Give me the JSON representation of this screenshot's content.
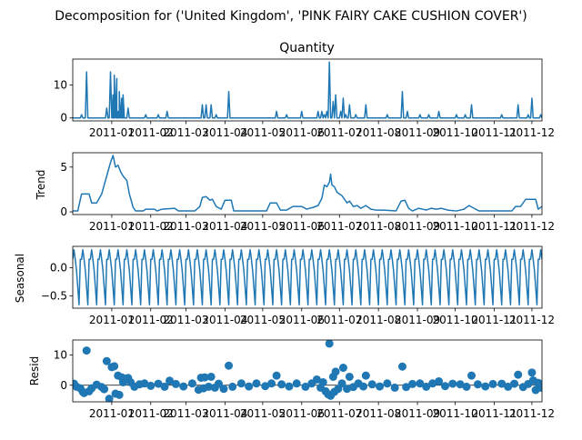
{
  "figure": {
    "suptitle": "Decomposition for ('United Kingdom', 'PINK FAIRY CAKE CUSHION COVER')"
  },
  "colors": {
    "series": "#1f77b4",
    "axis": "#000000",
    "background": "#ffffff"
  },
  "chart_data": [
    {
      "type": "line",
      "title": "Quantity",
      "ylabel": "",
      "ylim": [
        -0.9,
        17.9
      ],
      "yticks": [
        0,
        10
      ],
      "xlim": [
        "2010-12-01",
        "2011-12-09"
      ],
      "x_tick_labels": [
        "2011-01",
        "2011-02",
        "2011-03",
        "2011-04",
        "2011-05",
        "2011-06",
        "2011-07",
        "2011-08",
        "2011-09",
        "2011-10",
        "2011-11",
        "2011-12"
      ],
      "baseline": 0,
      "spikes": [
        {
          "date": "2010-12-08",
          "value": 1
        },
        {
          "date": "2010-12-12",
          "value": 14
        },
        {
          "date": "2010-12-28",
          "value": 3
        },
        {
          "date": "2010-12-31",
          "value": 14
        },
        {
          "date": "2011-01-02",
          "value": 7
        },
        {
          "date": "2011-01-03",
          "value": 13
        },
        {
          "date": "2011-01-05",
          "value": 12
        },
        {
          "date": "2011-01-06",
          "value": 2
        },
        {
          "date": "2011-01-07",
          "value": 8
        },
        {
          "date": "2011-01-09",
          "value": 6
        },
        {
          "date": "2011-01-10",
          "value": 7
        },
        {
          "date": "2011-01-14",
          "value": 3
        },
        {
          "date": "2011-01-28",
          "value": 1
        },
        {
          "date": "2011-02-07",
          "value": 1
        },
        {
          "date": "2011-02-14",
          "value": 2
        },
        {
          "date": "2011-03-14",
          "value": 4
        },
        {
          "date": "2011-03-17",
          "value": 4
        },
        {
          "date": "2011-03-21",
          "value": 4
        },
        {
          "date": "2011-03-25",
          "value": 1
        },
        {
          "date": "2011-04-04",
          "value": 8
        },
        {
          "date": "2011-05-12",
          "value": 2
        },
        {
          "date": "2011-05-20",
          "value": 1
        },
        {
          "date": "2011-06-01",
          "value": 2
        },
        {
          "date": "2011-06-14",
          "value": 2
        },
        {
          "date": "2011-06-17",
          "value": 2
        },
        {
          "date": "2011-06-19",
          "value": 1
        },
        {
          "date": "2011-06-21",
          "value": 2
        },
        {
          "date": "2011-06-23",
          "value": 17
        },
        {
          "date": "2011-06-26",
          "value": 5
        },
        {
          "date": "2011-06-28",
          "value": 7
        },
        {
          "date": "2011-07-02",
          "value": 2
        },
        {
          "date": "2011-07-04",
          "value": 6
        },
        {
          "date": "2011-07-06",
          "value": 1
        },
        {
          "date": "2011-07-09",
          "value": 4
        },
        {
          "date": "2011-07-14",
          "value": 1
        },
        {
          "date": "2011-07-22",
          "value": 4
        },
        {
          "date": "2011-08-08",
          "value": 1
        },
        {
          "date": "2011-08-20",
          "value": 8
        },
        {
          "date": "2011-08-24",
          "value": 2
        },
        {
          "date": "2011-09-03",
          "value": 1
        },
        {
          "date": "2011-09-10",
          "value": 1
        },
        {
          "date": "2011-09-18",
          "value": 2
        },
        {
          "date": "2011-10-02",
          "value": 1
        },
        {
          "date": "2011-10-09",
          "value": 1
        },
        {
          "date": "2011-10-14",
          "value": 4
        },
        {
          "date": "2011-11-07",
          "value": 1
        },
        {
          "date": "2011-11-20",
          "value": 4
        },
        {
          "date": "2011-11-28",
          "value": 1
        },
        {
          "date": "2011-12-01",
          "value": 6
        },
        {
          "date": "2011-12-08",
          "value": 1
        }
      ]
    },
    {
      "type": "line",
      "title": "",
      "ylabel": "Trend",
      "ylim": [
        -0.3,
        6.6
      ],
      "yticks": [
        0,
        5
      ],
      "xlim": [
        "2010-12-01",
        "2011-12-09"
      ],
      "x_tick_labels": [
        "2011-01",
        "2011-02",
        "2011-03",
        "2011-04",
        "2011-05",
        "2011-06",
        "2011-07",
        "2011-08",
        "2011-09",
        "2011-10",
        "2011-11",
        "2011-12"
      ],
      "points": [
        [
          "2010-12-01",
          0.1
        ],
        [
          "2010-12-05",
          0.1
        ],
        [
          "2010-12-08",
          2.0
        ],
        [
          "2010-12-14",
          2.0
        ],
        [
          "2010-12-16",
          1.0
        ],
        [
          "2010-12-20",
          1.0
        ],
        [
          "2010-12-24",
          2.0
        ],
        [
          "2010-12-28",
          4.0
        ],
        [
          "2010-12-31",
          5.5
        ],
        [
          "2011-01-02",
          6.3
        ],
        [
          "2011-01-04",
          5.0
        ],
        [
          "2011-01-06",
          5.2
        ],
        [
          "2011-01-08",
          4.5
        ],
        [
          "2011-01-10",
          4.0
        ],
        [
          "2011-01-13",
          3.5
        ],
        [
          "2011-01-15",
          2.0
        ],
        [
          "2011-01-18",
          0.5
        ],
        [
          "2011-01-20",
          0.1
        ],
        [
          "2011-01-26",
          0.1
        ],
        [
          "2011-01-28",
          0.3
        ],
        [
          "2011-02-04",
          0.3
        ],
        [
          "2011-02-06",
          0.1
        ],
        [
          "2011-02-10",
          0.3
        ],
        [
          "2011-02-20",
          0.4
        ],
        [
          "2011-02-23",
          0.1
        ],
        [
          "2011-03-08",
          0.1
        ],
        [
          "2011-03-12",
          0.6
        ],
        [
          "2011-03-14",
          1.6
        ],
        [
          "2011-03-17",
          1.7
        ],
        [
          "2011-03-20",
          1.3
        ],
        [
          "2011-03-22",
          1.4
        ],
        [
          "2011-03-25",
          0.6
        ],
        [
          "2011-03-29",
          0.3
        ],
        [
          "2011-04-01",
          1.3
        ],
        [
          "2011-04-06",
          1.3
        ],
        [
          "2011-04-08",
          0.1
        ],
        [
          "2011-05-04",
          0.1
        ],
        [
          "2011-05-07",
          1.0
        ],
        [
          "2011-05-12",
          1.0
        ],
        [
          "2011-05-15",
          0.2
        ],
        [
          "2011-05-20",
          0.2
        ],
        [
          "2011-05-25",
          0.6
        ],
        [
          "2011-06-01",
          0.6
        ],
        [
          "2011-06-05",
          0.3
        ],
        [
          "2011-06-10",
          0.5
        ],
        [
          "2011-06-14",
          0.7
        ],
        [
          "2011-06-17",
          1.5
        ],
        [
          "2011-06-19",
          3.0
        ],
        [
          "2011-06-21",
          2.8
        ],
        [
          "2011-06-23",
          3.3
        ],
        [
          "2011-06-24",
          4.2
        ],
        [
          "2011-06-25",
          3.0
        ],
        [
          "2011-06-27",
          2.8
        ],
        [
          "2011-06-29",
          2.2
        ],
        [
          "2011-07-01",
          2.0
        ],
        [
          "2011-07-03",
          1.8
        ],
        [
          "2011-07-05",
          1.4
        ],
        [
          "2011-07-07",
          1.0
        ],
        [
          "2011-07-09",
          1.2
        ],
        [
          "2011-07-12",
          0.6
        ],
        [
          "2011-07-15",
          0.7
        ],
        [
          "2011-07-18",
          0.4
        ],
        [
          "2011-07-22",
          0.7
        ],
        [
          "2011-07-26",
          0.3
        ],
        [
          "2011-07-30",
          0.2
        ],
        [
          "2011-08-05",
          0.2
        ],
        [
          "2011-08-15",
          0.1
        ],
        [
          "2011-08-19",
          1.2
        ],
        [
          "2011-08-22",
          1.3
        ],
        [
          "2011-08-25",
          0.4
        ],
        [
          "2011-08-28",
          0.1
        ],
        [
          "2011-09-02",
          0.4
        ],
        [
          "2011-09-08",
          0.2
        ],
        [
          "2011-09-12",
          0.4
        ],
        [
          "2011-09-16",
          0.3
        ],
        [
          "2011-09-20",
          0.4
        ],
        [
          "2011-09-25",
          0.2
        ],
        [
          "2011-10-02",
          0.1
        ],
        [
          "2011-10-08",
          0.3
        ],
        [
          "2011-10-12",
          0.7
        ],
        [
          "2011-10-16",
          0.4
        ],
        [
          "2011-10-20",
          0.1
        ],
        [
          "2011-11-15",
          0.1
        ],
        [
          "2011-11-18",
          0.6
        ],
        [
          "2011-11-22",
          0.6
        ],
        [
          "2011-11-26",
          1.4
        ],
        [
          "2011-12-04",
          1.4
        ],
        [
          "2011-12-06",
          0.3
        ],
        [
          "2011-12-09",
          0.6
        ]
      ]
    },
    {
      "type": "line",
      "title": "",
      "ylabel": "Seasonal",
      "ylim": [
        -0.72,
        0.38
      ],
      "yticks": [
        0.0,
        -0.5
      ],
      "ytick_labels": [
        "0.0",
        "−0.5"
      ],
      "xlim": [
        "2010-12-01",
        "2011-12-09"
      ],
      "x_tick_labels": [
        "2011-01",
        "2011-02",
        "2011-03",
        "2011-04",
        "2011-05",
        "2011-06",
        "2011-07",
        "2011-08",
        "2011-09",
        "2011-10",
        "2011-11",
        "2011-12"
      ],
      "period_days": 7,
      "period_pattern": [
        0.15,
        0.32,
        0.15,
        -0.05,
        -0.35,
        -0.66,
        0.15
      ]
    },
    {
      "type": "scatter",
      "title": "",
      "ylabel": "Resid",
      "ylim": [
        -5.5,
        15.0
      ],
      "yticks": [
        0,
        10
      ],
      "xlim": [
        "2010-12-01",
        "2011-12-09"
      ],
      "x_tick_labels": [
        "2011-01",
        "2011-02",
        "2011-03",
        "2011-04",
        "2011-05",
        "2011-06",
        "2011-07",
        "2011-08",
        "2011-09",
        "2011-10",
        "2011-11",
        "2011-12"
      ],
      "points": [
        [
          "2010-12-02",
          0.5
        ],
        [
          "2010-12-04",
          -0.5
        ],
        [
          "2010-12-07",
          -1.0
        ],
        [
          "2010-12-09",
          -2.2
        ],
        [
          "2010-12-10",
          -2.6
        ],
        [
          "2010-12-12",
          11.5
        ],
        [
          "2010-12-14",
          -2.0
        ],
        [
          "2010-12-16",
          -1.0
        ],
        [
          "2010-12-20",
          0.2
        ],
        [
          "2010-12-24",
          -0.6
        ],
        [
          "2010-12-26",
          -1.3
        ],
        [
          "2010-12-28",
          8.0
        ],
        [
          "2010-12-30",
          -4.5
        ],
        [
          "2011-01-01",
          6.0
        ],
        [
          "2011-01-03",
          6.3
        ],
        [
          "2011-01-04",
          -2.8
        ],
        [
          "2011-01-06",
          3.2
        ],
        [
          "2011-01-07",
          -3.2
        ],
        [
          "2011-01-09",
          2.6
        ],
        [
          "2011-01-10",
          1.0
        ],
        [
          "2011-01-12",
          2.2
        ],
        [
          "2011-01-14",
          2.4
        ],
        [
          "2011-01-16",
          1.0
        ],
        [
          "2011-01-19",
          -0.5
        ],
        [
          "2011-01-23",
          0.3
        ],
        [
          "2011-01-27",
          0.6
        ],
        [
          "2011-02-01",
          -0.2
        ],
        [
          "2011-02-07",
          0.5
        ],
        [
          "2011-02-12",
          -0.5
        ],
        [
          "2011-02-16",
          1.5
        ],
        [
          "2011-02-21",
          0.4
        ],
        [
          "2011-02-27",
          -0.4
        ],
        [
          "2011-03-06",
          0.6
        ],
        [
          "2011-03-11",
          -1.5
        ],
        [
          "2011-03-13",
          2.5
        ],
        [
          "2011-03-15",
          -1.0
        ],
        [
          "2011-03-16",
          2.6
        ],
        [
          "2011-03-19",
          -0.5
        ],
        [
          "2011-03-21",
          2.8
        ],
        [
          "2011-03-24",
          -0.8
        ],
        [
          "2011-03-27",
          0.5
        ],
        [
          "2011-03-31",
          -1.2
        ],
        [
          "2011-04-04",
          6.5
        ],
        [
          "2011-04-07",
          -0.5
        ],
        [
          "2011-04-14",
          0.6
        ],
        [
          "2011-04-20",
          -0.4
        ],
        [
          "2011-04-26",
          0.6
        ],
        [
          "2011-05-03",
          -0.3
        ],
        [
          "2011-05-08",
          0.6
        ],
        [
          "2011-05-12",
          3.2
        ],
        [
          "2011-05-16",
          0.3
        ],
        [
          "2011-05-22",
          -0.4
        ],
        [
          "2011-05-28",
          0.6
        ],
        [
          "2011-06-04",
          -0.5
        ],
        [
          "2011-06-09",
          0.6
        ],
        [
          "2011-06-13",
          1.9
        ],
        [
          "2011-06-16",
          -0.8
        ],
        [
          "2011-06-18",
          1.0
        ],
        [
          "2011-06-20",
          -2.0
        ],
        [
          "2011-06-22",
          -3.0
        ],
        [
          "2011-06-23",
          13.8
        ],
        [
          "2011-06-24",
          -3.5
        ],
        [
          "2011-06-26",
          2.8
        ],
        [
          "2011-06-27",
          -2.2
        ],
        [
          "2011-06-28",
          4.5
        ],
        [
          "2011-06-30",
          -1.2
        ],
        [
          "2011-07-03",
          0.6
        ],
        [
          "2011-07-04",
          5.8
        ],
        [
          "2011-07-07",
          -1.2
        ],
        [
          "2011-07-09",
          2.8
        ],
        [
          "2011-07-12",
          -0.6
        ],
        [
          "2011-07-16",
          0.6
        ],
        [
          "2011-07-20",
          -0.4
        ],
        [
          "2011-07-22",
          3.2
        ],
        [
          "2011-07-27",
          0.3
        ],
        [
          "2011-08-02",
          -0.4
        ],
        [
          "2011-08-08",
          0.6
        ],
        [
          "2011-08-14",
          -0.8
        ],
        [
          "2011-08-20",
          6.2
        ],
        [
          "2011-08-23",
          -0.6
        ],
        [
          "2011-08-28",
          0.4
        ],
        [
          "2011-09-03",
          0.6
        ],
        [
          "2011-09-08",
          -0.5
        ],
        [
          "2011-09-13",
          0.6
        ],
        [
          "2011-09-18",
          1.3
        ],
        [
          "2011-09-23",
          -0.3
        ],
        [
          "2011-09-29",
          0.5
        ],
        [
          "2011-10-05",
          0.3
        ],
        [
          "2011-10-10",
          -0.5
        ],
        [
          "2011-10-14",
          3.2
        ],
        [
          "2011-10-19",
          0.3
        ],
        [
          "2011-10-25",
          -0.4
        ],
        [
          "2011-10-31",
          0.4
        ],
        [
          "2011-11-07",
          0.5
        ],
        [
          "2011-11-12",
          -0.5
        ],
        [
          "2011-11-17",
          0.5
        ],
        [
          "2011-11-20",
          3.5
        ],
        [
          "2011-11-24",
          -0.6
        ],
        [
          "2011-11-28",
          0.4
        ],
        [
          "2011-12-01",
          4.2
        ],
        [
          "2011-12-02",
          1.6
        ],
        [
          "2011-12-04",
          -1.6
        ],
        [
          "2011-12-06",
          0.8
        ],
        [
          "2011-12-08",
          -0.8
        ]
      ]
    }
  ]
}
